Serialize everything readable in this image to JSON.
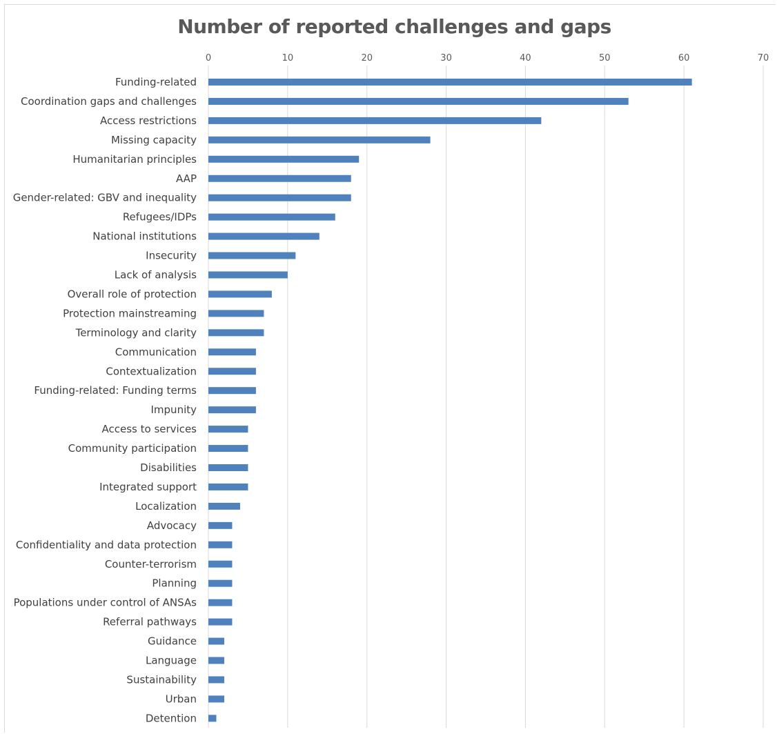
{
  "chart_data": {
    "type": "bar",
    "orientation": "horizontal",
    "title": "Number of reported challenges and gaps",
    "xlim": [
      0,
      70
    ],
    "x_ticks": [
      "0",
      "10",
      "20",
      "30",
      "40",
      "50",
      "60",
      "70"
    ],
    "x_tick_values": [
      0,
      10,
      20,
      30,
      40,
      50,
      60,
      70
    ],
    "gridlines": "vertical",
    "bar_color": "#4f81bd",
    "categories": [
      "Funding-related",
      "Coordination gaps and challenges",
      "Access restrictions",
      "Missing capacity",
      "Humanitarian principles",
      "AAP",
      "Gender-related: GBV and inequality",
      "Refugees/IDPs",
      "National institutions",
      "Insecurity",
      "Lack of analysis",
      "Overall role of protection",
      "Protection mainstreaming",
      "Terminology and clarity",
      "Communication",
      "Contextualization",
      "Funding-related: Funding terms",
      "Impunity",
      "Access to services",
      "Community participation",
      "Disabilities",
      "Integrated support",
      "Localization",
      "Advocacy",
      "Confidentiality and data protection",
      "Counter-terrorism",
      "Planning",
      "Populations under control of ANSAs",
      "Referral pathways",
      "Guidance",
      "Language",
      "Sustainability",
      "Urban",
      "Detention"
    ],
    "values": [
      61,
      53,
      42,
      28,
      19,
      18,
      18,
      16,
      14,
      11,
      10,
      8,
      7,
      7,
      6,
      6,
      6,
      6,
      5,
      5,
      5,
      5,
      4,
      3,
      3,
      3,
      3,
      3,
      3,
      2,
      2,
      2,
      2,
      1
    ]
  }
}
